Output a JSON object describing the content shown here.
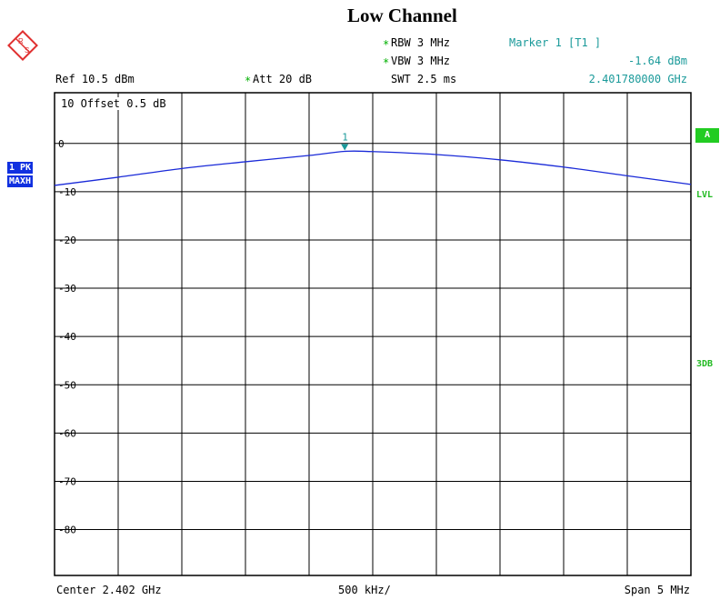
{
  "title": "Low Channel",
  "logo_letters": "RS",
  "header": {
    "rbw_star": "*",
    "rbw": "RBW 3 MHz",
    "vbw_star": "*",
    "vbw": "VBW 3 MHz",
    "swt": "SWT 2.5 ms",
    "marker_label": "Marker 1 [T1 ]",
    "marker_level": "-1.64 dBm",
    "marker_freq": "2.401780000 GHz",
    "ref": "Ref  10.5 dBm",
    "att_star": "*",
    "att": "Att  20 dB"
  },
  "offset_text": "10  Offset  0.5 dB",
  "left_labels": {
    "trace": "1 PK",
    "mode": "MAXH"
  },
  "right_labels": {
    "a": "A",
    "lvl": "LVL",
    "db3": "3DB"
  },
  "footer": {
    "center": "Center 2.402 GHz",
    "div": "500 kHz/",
    "span": "Span 5 MHz"
  },
  "colors": {
    "trace": "#1a2ad8",
    "marker": "#1a9a9a",
    "grid": "#000000"
  },
  "chart_data": {
    "type": "line",
    "title": "Low Channel",
    "xlabel": "",
    "ylabel": "",
    "xlim": [
      2.3995,
      2.4045
    ],
    "ylim": [
      -89.5,
      10.5
    ],
    "y_ticks": [
      0,
      -10,
      -20,
      -30,
      -40,
      -50,
      -60,
      -70,
      -80
    ],
    "y_tick_labels": [
      "0",
      "-10",
      "-20",
      "-30",
      "-40",
      "-50",
      "-60",
      "-70",
      "-80"
    ],
    "grid": true,
    "marker": {
      "label": "1",
      "x": 2.40178,
      "y": -1.64
    },
    "series": [
      {
        "x": [
          2.3995,
          2.4,
          2.4005,
          2.401,
          2.4015,
          2.40178,
          2.402,
          2.4025,
          2.403,
          2.4035,
          2.404,
          2.4045
        ],
        "values": [
          -8.7,
          -7.0,
          -5.2,
          -3.8,
          -2.5,
          -1.64,
          -1.7,
          -2.3,
          -3.4,
          -4.9,
          -6.7,
          -8.5
        ]
      }
    ]
  }
}
